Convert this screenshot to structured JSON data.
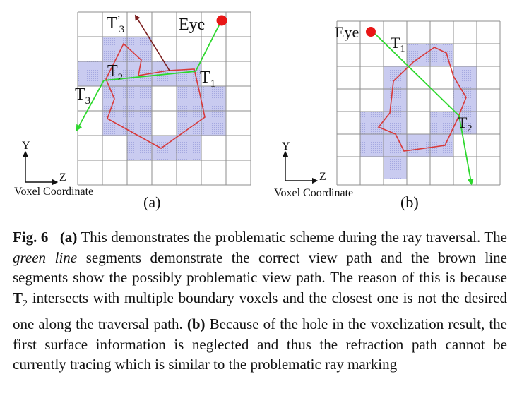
{
  "figure": {
    "panel_a": {
      "label": "(a)",
      "axis": {
        "y": "Y",
        "z": "Z",
        "caption": "Voxel Coordinate"
      },
      "points": {
        "eye": "Eye",
        "t1": "T",
        "t1_sub": "1",
        "t2": "T",
        "t2_sub": "2",
        "t3": "T",
        "t3_sub": "3",
        "t3p": "T",
        "t3p_sup": "’",
        "t3p_sub": "3"
      }
    },
    "panel_b": {
      "label": "(b)",
      "axis": {
        "y": "Y",
        "z": "Z",
        "caption": "Voxel Coordinate"
      },
      "points": {
        "eye": "Eye",
        "t1": "T",
        "t1_sub": "1",
        "t2": "T",
        "t2_sub": "2"
      }
    },
    "colors": {
      "voxel": "#c3c6ee",
      "grid": "#8e8e8e",
      "boundary": "#d83a3a",
      "green_path": "#2ed82e",
      "brown_path": "#7a1d1d",
      "eye": "#e81616"
    }
  },
  "caption": {
    "fig_label": "Fig. 6",
    "a_label": "(a)",
    "a_text_1": " This demonstrates the problematic scheme during the ray traversal. The ",
    "green_italic": "green line",
    "a_text_2": " segments demonstrate the correct view path and the brown line segments show the possibly problematic view path. The reason of this is because ",
    "t2_symbol": "T",
    "t2_sub": "2",
    "a_text_3": " intersects with multiple boundary voxels and the closest one is not the desired one along the traversal path. ",
    "b_label": "(b)",
    "b_text": " Because of the hole in the voxelization result, the first surface information is neglected and thus the refraction path cannot be currently tracing which is similar to the problematic ray marking"
  }
}
